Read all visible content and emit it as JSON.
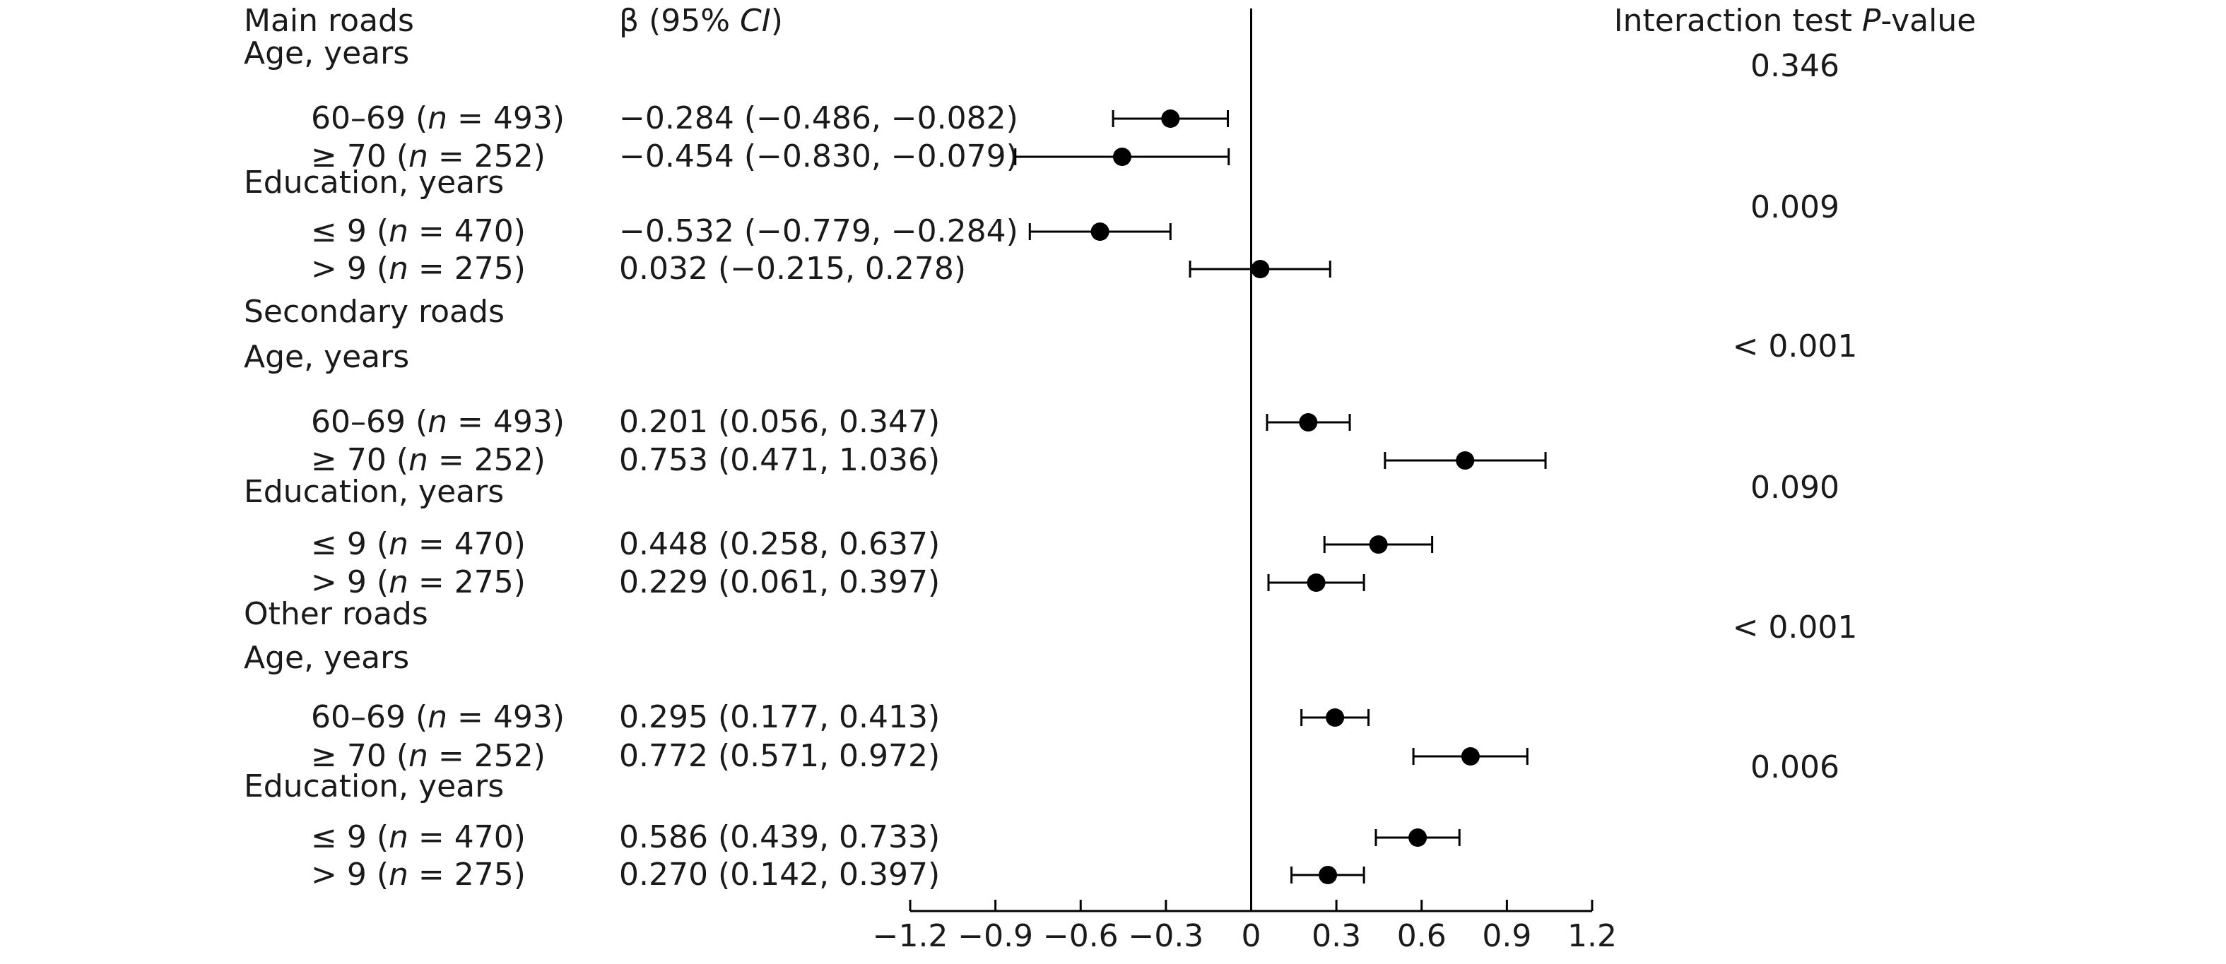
{
  "chart_data": {
    "type": "forest",
    "header": {
      "label_col": "Main roads",
      "beta_col_prefix": "β (95% ",
      "beta_col_italic": "CI",
      "beta_col_suffix": ")",
      "pvalue_col_prefix": "Interaction test ",
      "pvalue_col_italic": "P",
      "pvalue_col_suffix": "-value"
    },
    "sections": [
      {
        "title": "Main roads",
        "subgroups": [
          {
            "title": "Age, years",
            "p_value": "0.346",
            "rows": [
              {
                "prefix": "60–69 (",
                "italic": "n",
                "suffix": " = 493)",
                "estimate": -0.284,
                "lower": -0.486,
                "upper": -0.082,
                "ci_text": "−0.284 (−0.486, −0.082)"
              },
              {
                "prefix": "≥ 70 (",
                "italic": "n",
                "suffix": " = 252)",
                "estimate": -0.454,
                "lower": -0.83,
                "upper": -0.079,
                "ci_text": "−0.454 (−0.830, −0.079)"
              }
            ]
          },
          {
            "title": "Education, years",
            "p_value": "0.009",
            "rows": [
              {
                "prefix": "≤ 9 (",
                "italic": "n",
                "suffix": " = 470)",
                "estimate": -0.532,
                "lower": -0.779,
                "upper": -0.284,
                "ci_text": "−0.532 (−0.779, −0.284)"
              },
              {
                "prefix": "> 9 (",
                "italic": "n",
                "suffix": " = 275)",
                "estimate": 0.032,
                "lower": -0.215,
                "upper": 0.278,
                "ci_text": "0.032 (−0.215, 0.278)"
              }
            ]
          }
        ]
      },
      {
        "title": "Secondary roads",
        "subgroups": [
          {
            "title": "Age, years",
            "p_value": "< 0.001",
            "rows": [
              {
                "prefix": "60–69 (",
                "italic": "n",
                "suffix": " = 493)",
                "estimate": 0.201,
                "lower": 0.056,
                "upper": 0.347,
                "ci_text": "0.201 (0.056, 0.347)"
              },
              {
                "prefix": "≥ 70 (",
                "italic": "n",
                "suffix": " = 252)",
                "estimate": 0.753,
                "lower": 0.471,
                "upper": 1.036,
                "ci_text": "0.753 (0.471, 1.036)"
              }
            ]
          },
          {
            "title": "Education, years",
            "p_value": "0.090",
            "rows": [
              {
                "prefix": "≤ 9 (",
                "italic": "n",
                "suffix": " = 470)",
                "estimate": 0.448,
                "lower": 0.258,
                "upper": 0.637,
                "ci_text": "0.448 (0.258, 0.637)"
              },
              {
                "prefix": "> 9 (",
                "italic": "n",
                "suffix": " = 275)",
                "estimate": 0.229,
                "lower": 0.061,
                "upper": 0.397,
                "ci_text": "0.229 (0.061, 0.397)"
              }
            ]
          }
        ]
      },
      {
        "title": "Other roads",
        "subgroups": [
          {
            "title": "Age, years",
            "p_value": "< 0.001",
            "rows": [
              {
                "prefix": "60–69 (",
                "italic": "n",
                "suffix": " = 493)",
                "estimate": 0.295,
                "lower": 0.177,
                "upper": 0.413,
                "ci_text": "0.295 (0.177, 0.413)"
              },
              {
                "prefix": "≥ 70 (",
                "italic": "n",
                "suffix": " = 252)",
                "estimate": 0.772,
                "lower": 0.571,
                "upper": 0.972,
                "ci_text": "0.772 (0.571, 0.972)"
              }
            ]
          },
          {
            "title": "Education, years",
            "p_value": "0.006",
            "rows": [
              {
                "prefix": "≤ 9 (",
                "italic": "n",
                "suffix": " = 470)",
                "estimate": 0.586,
                "lower": 0.439,
                "upper": 0.733,
                "ci_text": "0.586 (0.439, 0.733)"
              },
              {
                "prefix": "> 9 (",
                "italic": "n",
                "suffix": " = 275)",
                "estimate": 0.27,
                "lower": 0.142,
                "upper": 0.397,
                "ci_text": "0.270 (0.142, 0.397)"
              }
            ]
          }
        ]
      }
    ],
    "x_axis": {
      "range": [
        -1.2,
        1.2
      ],
      "ticks": [
        -1.2,
        -0.9,
        -0.6,
        -0.3,
        0,
        0.3,
        0.6,
        0.9,
        1.2
      ],
      "tick_labels": [
        "−1.2",
        "−0.9",
        "−0.6",
        "−0.3",
        "0",
        "0.3",
        "0.6",
        "0.9",
        "1.2"
      ],
      "reference_line": 0
    },
    "colors": {
      "marker": "#000000",
      "text": "#1a1a1a"
    }
  }
}
